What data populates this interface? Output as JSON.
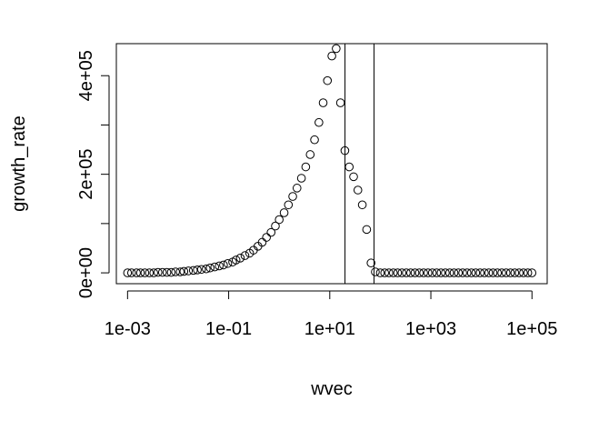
{
  "chart_data": {
    "type": "scatter",
    "title": "",
    "xlabel": "wvec",
    "ylabel": "growth_rate",
    "x_scale": "log10",
    "xlim": [
      0.0006,
      200000
    ],
    "ylim": [
      -22000,
      465000
    ],
    "x_ticks": [
      {
        "value": 0.001,
        "label": "1e-03"
      },
      {
        "value": 0.1,
        "label": "1e-01"
      },
      {
        "value": 10,
        "label": "1e+01"
      },
      {
        "value": 1000,
        "label": "1e+03"
      },
      {
        "value": 100000,
        "label": "1e+05"
      }
    ],
    "y_ticks": [
      {
        "value": 0,
        "label": "0e+00"
      },
      {
        "value": 100000,
        "label": ""
      },
      {
        "value": 200000,
        "label": "2e+05"
      },
      {
        "value": 300000,
        "label": ""
      },
      {
        "value": 400000,
        "label": "4e+05"
      }
    ],
    "vlines": [
      20,
      75
    ],
    "grid": false,
    "marker": "open-circle",
    "series": [
      {
        "x": [
          0.001,
          0.0012,
          0.0015,
          0.0018,
          0.0022,
          0.0027,
          0.0033,
          0.004,
          0.0049,
          0.006,
          0.0073,
          0.0089,
          0.011,
          0.013,
          0.016,
          0.02,
          0.024,
          0.029,
          0.036,
          0.043,
          0.053,
          0.065,
          0.079,
          0.096,
          0.12,
          0.14,
          0.17,
          0.21,
          0.26,
          0.31,
          0.38,
          0.46,
          0.56,
          0.69,
          0.84,
          1.0,
          1.25,
          1.52,
          1.85,
          2.25,
          2.75,
          3.35,
          4.1,
          5.0,
          6.1,
          7.4,
          9.0,
          11.0,
          13.4,
          16.3,
          19.9,
          24.3,
          29.6,
          36.0,
          44.0,
          53.7,
          65.5,
          79.8
        ],
        "y": [
          0,
          0,
          0,
          0,
          0,
          0,
          0,
          1000,
          1000,
          1000,
          1000,
          2000,
          2000,
          3000,
          4000,
          5000,
          6000,
          7000,
          8000,
          10000,
          12000,
          14000,
          16000,
          19000,
          22000,
          26000,
          30000,
          35000,
          40000,
          46000,
          54000,
          62000,
          72000,
          82000,
          95000,
          108000,
          122000,
          138000,
          155000,
          172000,
          192000,
          215000,
          240000,
          270000,
          305000,
          345000,
          390000,
          440000,
          455000,
          345000,
          248000,
          215000,
          195000,
          168000,
          138000,
          88000,
          20000,
          2000
        ]
      },
      {
        "x": [
          100,
          122,
          148,
          181,
          220,
          268,
          327,
          398,
          485,
          591,
          720,
          877,
          1069,
          1303,
          1587,
          1934,
          2357,
          2872,
          3500,
          4265,
          5197,
          6333,
          7717,
          9404,
          11460,
          13965,
          17017,
          20737,
          25270,
          30793,
          37524,
          45726,
          55721,
          67900,
          82742,
          100000
        ],
        "y": [
          0,
          0,
          0,
          0,
          0,
          0,
          0,
          0,
          0,
          0,
          0,
          0,
          0,
          0,
          0,
          0,
          0,
          0,
          0,
          0,
          0,
          0,
          0,
          0,
          0,
          0,
          0,
          0,
          0,
          0,
          0,
          0,
          0,
          0,
          0,
          0
        ]
      }
    ]
  }
}
